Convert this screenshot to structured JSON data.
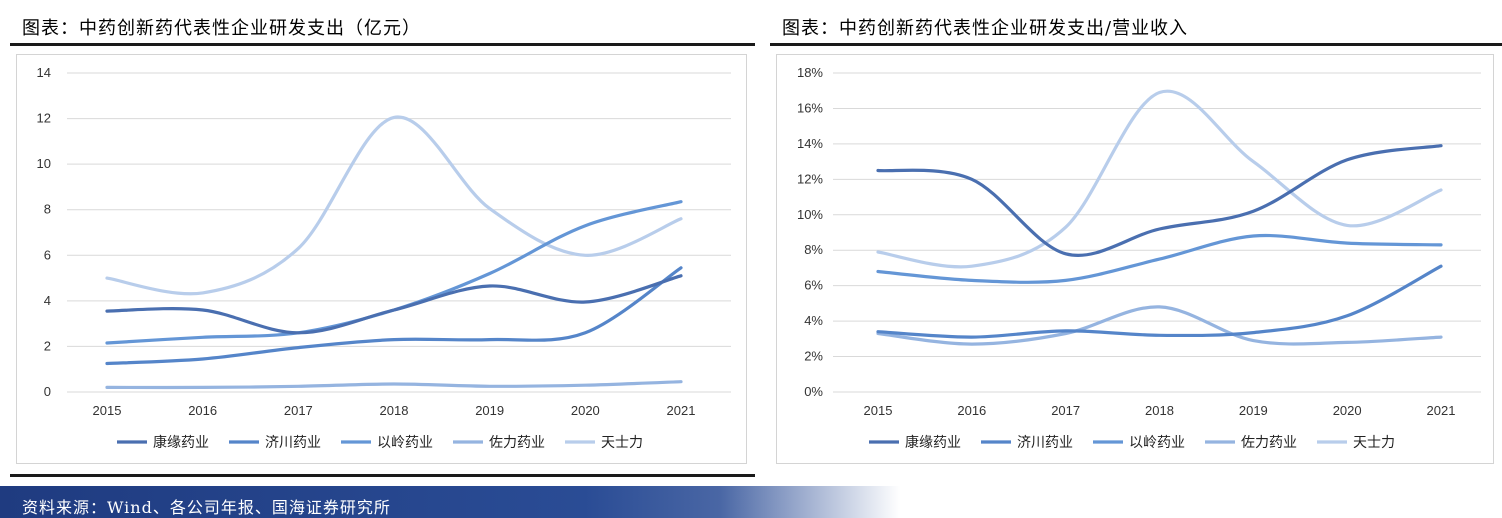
{
  "left_panel": {
    "title": "图表：中药创新药代表性企业研发支出（亿元）"
  },
  "right_panel": {
    "title": "图表：中药创新药代表性企业研发支出/营业收入"
  },
  "source": "资料来源：Wind、各公司年报、国海证券研究所",
  "colors": {
    "title_rule": "#1a1a1a",
    "source_bar": "#1f3b80",
    "grid": "#d9d9d9",
    "series": [
      "#4a6fb0",
      "#5585c9",
      "#6496d6",
      "#95b4e0",
      "#b8cdeb"
    ]
  },
  "chart_data": [
    {
      "type": "line",
      "smooth": true,
      "x": [
        "2015",
        "2016",
        "2017",
        "2018",
        "2019",
        "2020",
        "2021"
      ],
      "ylim": [
        0,
        14
      ],
      "yticks": [
        "0",
        "2",
        "4",
        "6",
        "8",
        "10",
        "12",
        "14"
      ],
      "grid": true,
      "legend": "bottom",
      "series": [
        {
          "name": "康缘药业",
          "values": [
            3.55,
            3.6,
            2.6,
            3.6,
            4.65,
            3.95,
            5.1
          ]
        },
        {
          "name": "济川药业",
          "values": [
            1.25,
            1.45,
            1.95,
            2.3,
            2.3,
            2.6,
            5.45
          ]
        },
        {
          "name": "以岭药业",
          "values": [
            2.15,
            2.4,
            2.6,
            3.6,
            5.2,
            7.3,
            8.35
          ]
        },
        {
          "name": "佐力药业",
          "values": [
            0.2,
            0.2,
            0.25,
            0.35,
            0.25,
            0.3,
            0.45
          ]
        },
        {
          "name": "天士力",
          "values": [
            5.0,
            4.35,
            6.3,
            12.05,
            8.05,
            6.0,
            7.6
          ]
        }
      ]
    },
    {
      "type": "line",
      "smooth": true,
      "x": [
        "2015",
        "2016",
        "2017",
        "2018",
        "2019",
        "2020",
        "2021"
      ],
      "ylim": [
        0,
        18
      ],
      "yticks": [
        "0%",
        "2%",
        "4%",
        "6%",
        "8%",
        "10%",
        "12%",
        "14%",
        "16%",
        "18%"
      ],
      "grid": true,
      "legend": "bottom",
      "series": [
        {
          "name": "康缘药业",
          "values": [
            12.5,
            12.0,
            7.8,
            9.2,
            10.2,
            13.1,
            13.9
          ]
        },
        {
          "name": "济川药业",
          "values": [
            3.4,
            3.1,
            3.45,
            3.2,
            3.35,
            4.3,
            7.1
          ]
        },
        {
          "name": "以岭药业",
          "values": [
            6.8,
            6.3,
            6.3,
            7.5,
            8.8,
            8.4,
            8.3
          ]
        },
        {
          "name": "佐力药业",
          "values": [
            3.3,
            2.7,
            3.3,
            4.8,
            2.9,
            2.8,
            3.1
          ]
        },
        {
          "name": "天士力",
          "values": [
            7.9,
            7.1,
            9.3,
            16.9,
            13.0,
            9.4,
            11.4
          ]
        }
      ]
    }
  ]
}
